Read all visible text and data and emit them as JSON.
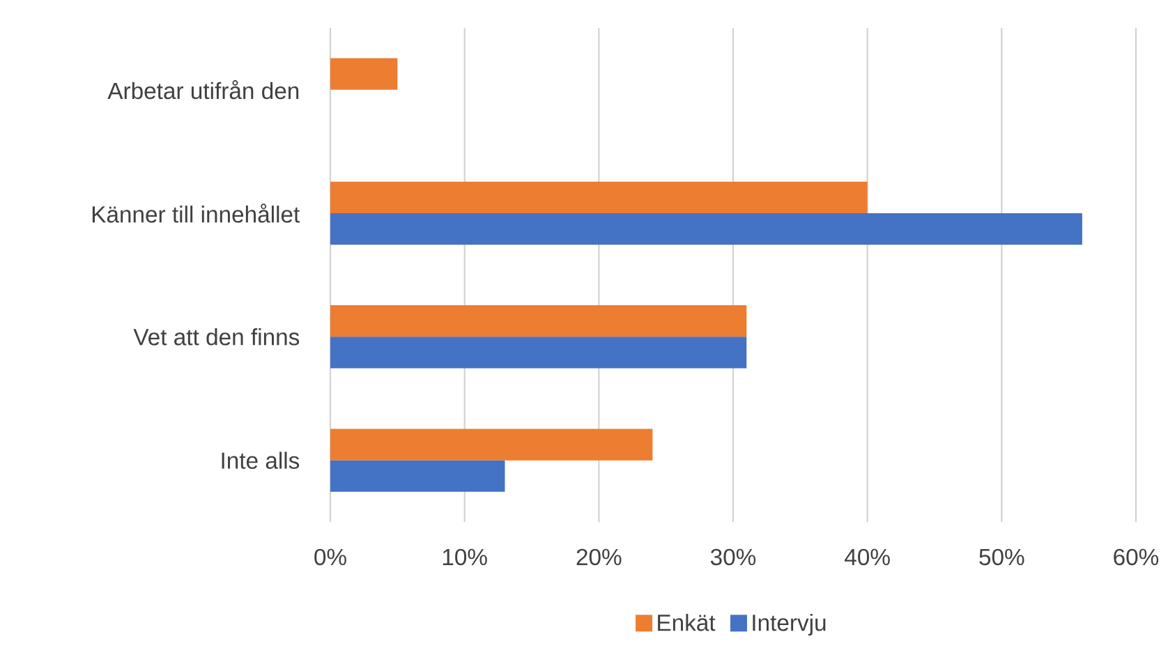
{
  "chart_data": {
    "type": "bar",
    "orientation": "horizontal",
    "categories": [
      "Arbetar utifrån den",
      "Känner till innehållet",
      "Vet att den finns",
      "Inte alls"
    ],
    "series": [
      {
        "name": "Enkät",
        "color": "#ed7d31",
        "values": [
          5,
          40,
          31,
          24
        ]
      },
      {
        "name": "Intervju",
        "color": "#4472c4",
        "values": [
          null,
          56,
          31,
          13
        ]
      }
    ],
    "xlim": [
      0,
      60
    ],
    "xticks": [
      {
        "value": 0,
        "label": "0%"
      },
      {
        "value": 10,
        "label": "10%"
      },
      {
        "value": 20,
        "label": "20%"
      },
      {
        "value": 30,
        "label": "30%"
      },
      {
        "value": 40,
        "label": "40%"
      },
      {
        "value": 50,
        "label": "50%"
      },
      {
        "value": 60,
        "label": "60%"
      }
    ],
    "grid": "x",
    "legend": "bottom"
  }
}
